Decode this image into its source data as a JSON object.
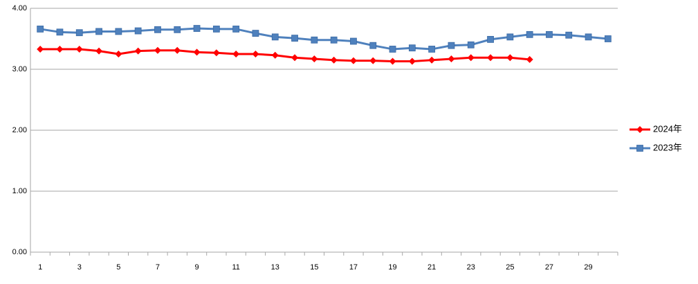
{
  "chart_data": {
    "type": "line",
    "categories": [
      "1",
      null,
      "3",
      null,
      "5",
      null,
      "7",
      null,
      "9",
      null,
      "11",
      null,
      "13",
      null,
      "15",
      null,
      "17",
      null,
      "19",
      null,
      "21",
      null,
      "23",
      null,
      "25",
      null,
      "27",
      null,
      "29",
      null
    ],
    "series": [
      {
        "name": "2024年",
        "color": "#ff0000",
        "marker": "diamond",
        "values": [
          3.33,
          3.33,
          3.33,
          3.3,
          3.25,
          3.3,
          3.31,
          3.31,
          3.28,
          3.27,
          3.25,
          3.25,
          3.23,
          3.19,
          3.17,
          3.15,
          3.14,
          3.14,
          3.13,
          3.13,
          3.15,
          3.17,
          3.19,
          3.19,
          3.19,
          3.16,
          null,
          null,
          null,
          null
        ]
      },
      {
        "name": "2023年",
        "color": "#4f81bd",
        "marker": "square",
        "values": [
          3.66,
          3.61,
          3.6,
          3.62,
          3.62,
          3.63,
          3.65,
          3.65,
          3.67,
          3.66,
          3.66,
          3.59,
          3.53,
          3.51,
          3.48,
          3.48,
          3.46,
          3.39,
          3.33,
          3.35,
          3.33,
          3.39,
          3.4,
          3.49,
          3.53,
          3.57,
          3.57,
          3.56,
          3.53,
          3.5
        ]
      }
    ],
    "ylim": [
      0,
      4
    ],
    "yticks": [
      {
        "value": 0,
        "label": "0.00"
      },
      {
        "value": 1,
        "label": "1.00"
      },
      {
        "value": 2,
        "label": "2.00"
      },
      {
        "value": 3,
        "label": "3.00"
      },
      {
        "value": 4,
        "label": "4.00"
      }
    ],
    "grid": true,
    "legend": "right"
  }
}
